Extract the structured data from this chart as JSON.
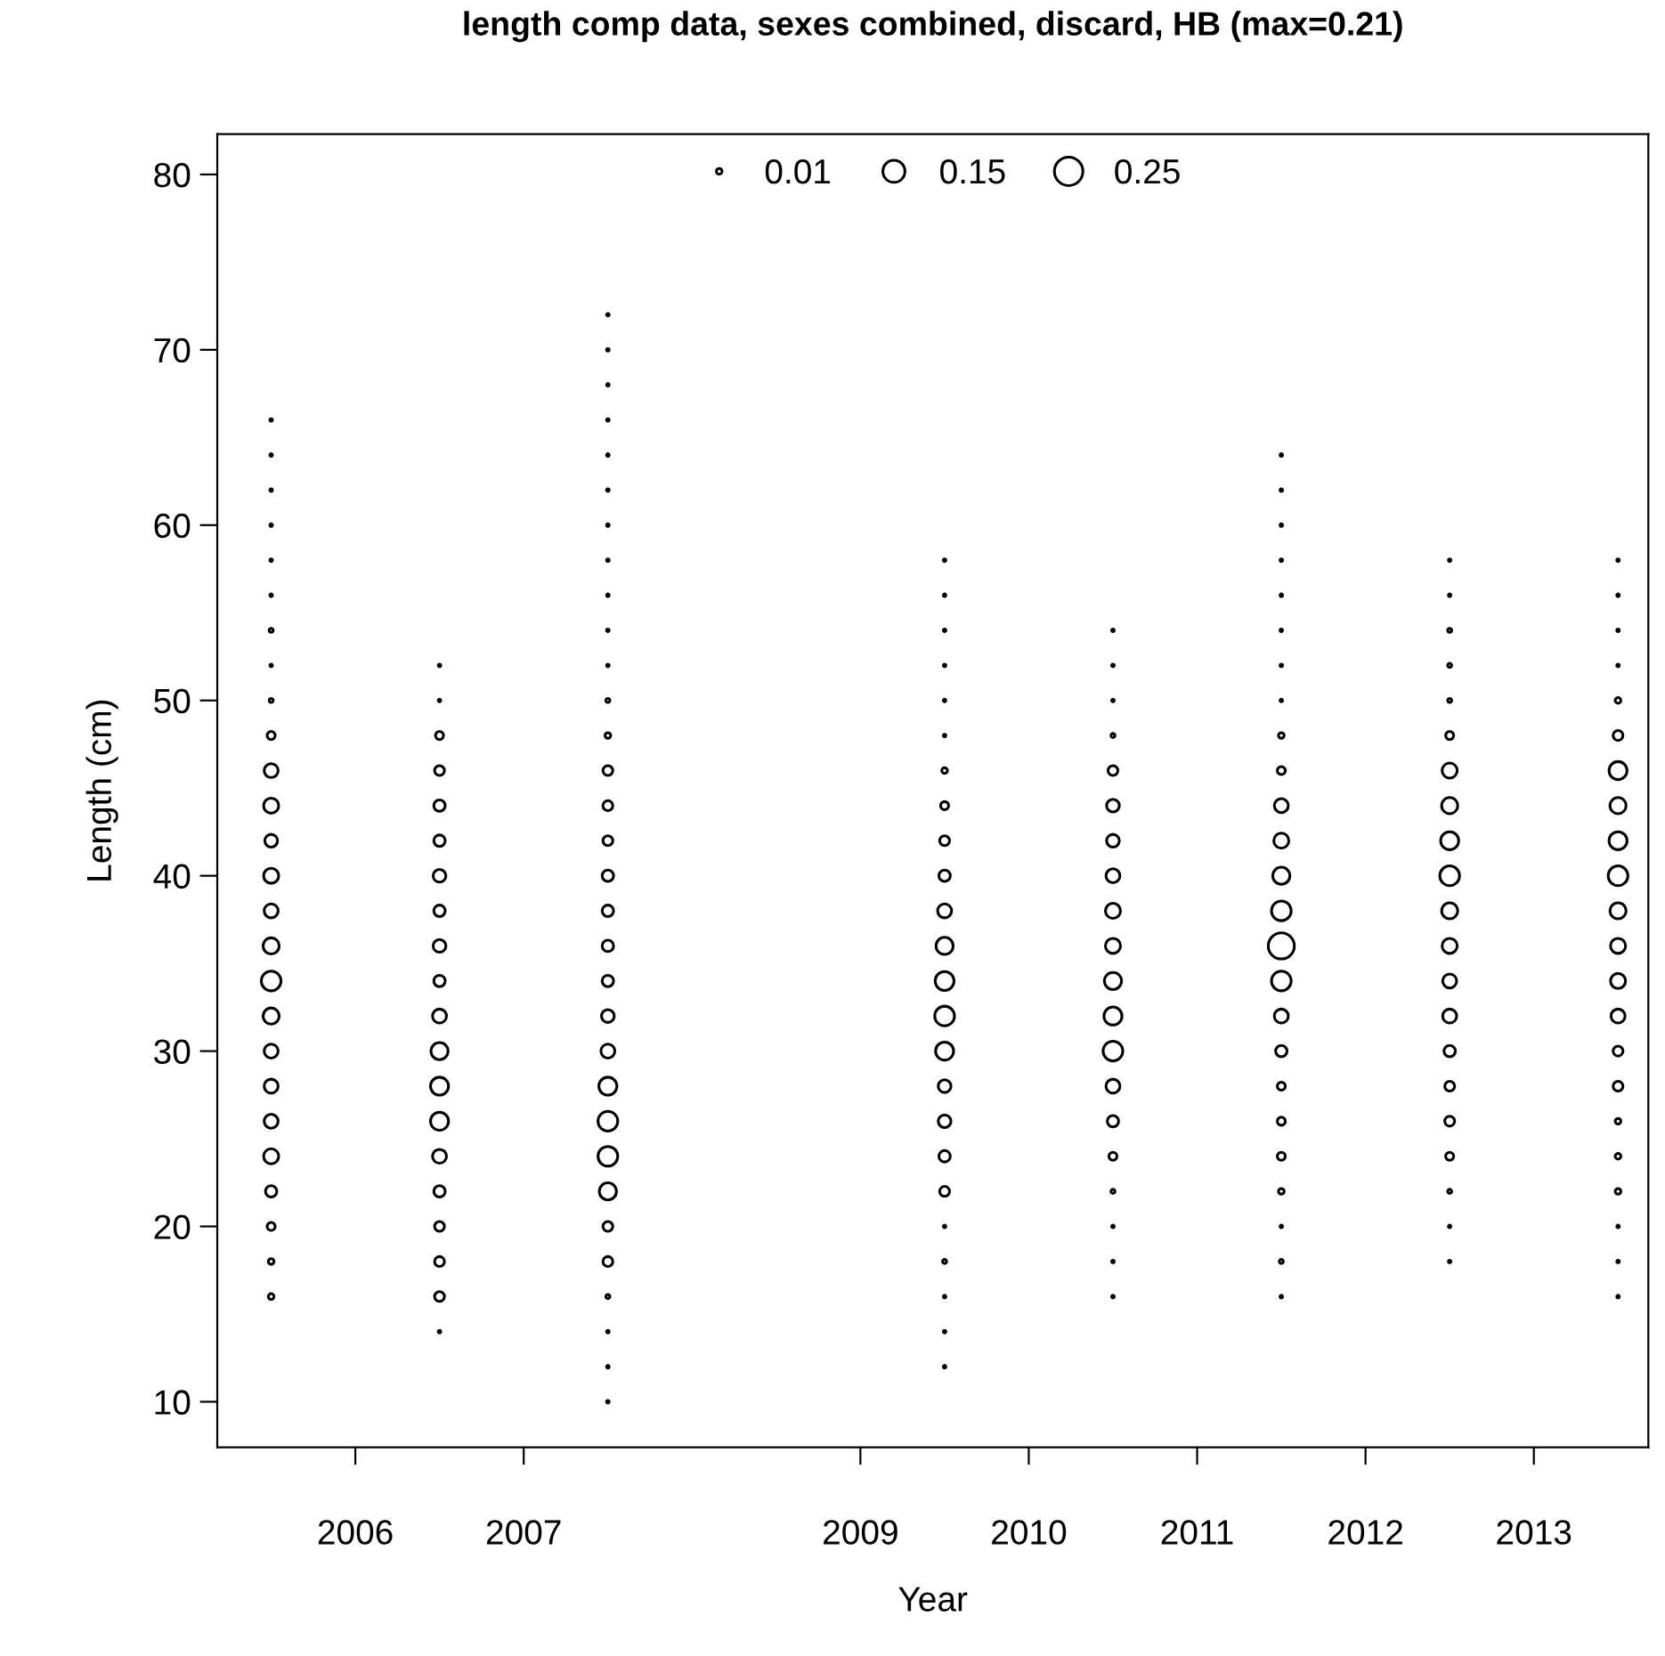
{
  "chart_data": {
    "type": "bubble",
    "title": "length comp data, sexes combined, discard, HB (max=0.21)",
    "xlabel": "Year",
    "ylabel": "Length (cm)",
    "xlim": [
      2005.18,
      2013.68
    ],
    "xticks": [
      2006,
      2007,
      2009,
      2010,
      2011,
      2012,
      2013
    ],
    "ylim": [
      7.4,
      82.3
    ],
    "yticks": [
      10,
      20,
      30,
      40,
      50,
      60,
      70,
      80
    ],
    "size_legend": [
      0.01,
      0.15,
      0.25
    ],
    "grid": false,
    "marker": "circle",
    "series": [
      {
        "color": "#000000",
        "x": [
          2005.5,
          2005.5,
          2005.5,
          2005.5,
          2005.5,
          2005.5,
          2005.5,
          2005.5,
          2005.5,
          2005.5,
          2005.5,
          2005.5,
          2005.5,
          2005.5,
          2005.5,
          2005.5,
          2005.5,
          2005.5,
          2005.5,
          2005.5,
          2005.5,
          2005.5,
          2005.5,
          2005.5,
          2005.5,
          2005.5
        ],
        "values": [
          16,
          18,
          20,
          22,
          24,
          26,
          28,
          30,
          32,
          34,
          36,
          38,
          40,
          42,
          44,
          46,
          48,
          50,
          52,
          54,
          56,
          58,
          60,
          62,
          64,
          66
        ],
        "sizes": [
          0.01,
          0.01,
          0.02,
          0.04,
          0.07,
          0.06,
          0.06,
          0.06,
          0.08,
          0.12,
          0.08,
          0.06,
          0.07,
          0.05,
          0.07,
          0.06,
          0.02,
          0.005,
          0.002,
          0.005,
          0.002,
          0.002,
          0.002,
          0.002,
          0.002,
          0.002
        ]
      },
      {
        "color": "#000000",
        "x": [
          2006.5,
          2006.5,
          2006.5,
          2006.5,
          2006.5,
          2006.5,
          2006.5,
          2006.5,
          2006.5,
          2006.5,
          2006.5,
          2006.5,
          2006.5,
          2006.5,
          2006.5,
          2006.5,
          2006.5,
          2006.5,
          2006.5,
          2006.5
        ],
        "values": [
          14,
          16,
          18,
          20,
          22,
          24,
          26,
          28,
          30,
          32,
          34,
          36,
          38,
          40,
          42,
          44,
          46,
          48,
          50,
          52
        ],
        "sizes": [
          0.002,
          0.03,
          0.03,
          0.03,
          0.04,
          0.06,
          0.1,
          0.1,
          0.09,
          0.06,
          0.04,
          0.05,
          0.04,
          0.05,
          0.04,
          0.04,
          0.03,
          0.02,
          0.002,
          0.002
        ]
      },
      {
        "color": "#000000",
        "x": [
          2007.5,
          2007.5,
          2007.5,
          2007.5,
          2007.5,
          2007.5,
          2007.5,
          2007.5,
          2007.5,
          2007.5,
          2007.5,
          2007.5,
          2007.5,
          2007.5,
          2007.5,
          2007.5,
          2007.5,
          2007.5,
          2007.5,
          2007.5,
          2007.5,
          2007.5,
          2007.5,
          2007.5,
          2007.5,
          2007.5,
          2007.5,
          2007.5,
          2007.5,
          2007.5,
          2007.5,
          2007.5
        ],
        "values": [
          10,
          12,
          14,
          16,
          18,
          20,
          22,
          24,
          26,
          28,
          30,
          32,
          34,
          36,
          38,
          40,
          42,
          44,
          46,
          48,
          50,
          52,
          54,
          56,
          58,
          60,
          62,
          64,
          66,
          68,
          70,
          72
        ],
        "sizes": [
          0.002,
          0.002,
          0.002,
          0.005,
          0.03,
          0.03,
          0.09,
          0.12,
          0.12,
          0.1,
          0.06,
          0.05,
          0.04,
          0.04,
          0.04,
          0.04,
          0.03,
          0.03,
          0.03,
          0.01,
          0.005,
          0.002,
          0.002,
          0.002,
          0.002,
          0.002,
          0.002,
          0.002,
          0.002,
          0.002,
          0.002,
          0.002
        ]
      },
      {
        "color": "#000000",
        "x": [
          2009.5,
          2009.5,
          2009.5,
          2009.5,
          2009.5,
          2009.5,
          2009.5,
          2009.5,
          2009.5,
          2009.5,
          2009.5,
          2009.5,
          2009.5,
          2009.5,
          2009.5,
          2009.5,
          2009.5,
          2009.5,
          2009.5,
          2009.5,
          2009.5,
          2009.5,
          2009.5,
          2009.5
        ],
        "values": [
          12,
          14,
          16,
          18,
          20,
          22,
          24,
          26,
          28,
          30,
          32,
          34,
          36,
          38,
          40,
          42,
          44,
          46,
          48,
          50,
          52,
          54,
          56,
          58
        ],
        "sizes": [
          0.002,
          0.002,
          0.002,
          0.005,
          0.002,
          0.03,
          0.04,
          0.05,
          0.05,
          0.1,
          0.12,
          0.11,
          0.09,
          0.06,
          0.04,
          0.03,
          0.02,
          0.01,
          0.002,
          0.002,
          0.002,
          0.002,
          0.002,
          0.002
        ]
      },
      {
        "color": "#000000",
        "x": [
          2010.5,
          2010.5,
          2010.5,
          2010.5,
          2010.5,
          2010.5,
          2010.5,
          2010.5,
          2010.5,
          2010.5,
          2010.5,
          2010.5,
          2010.5,
          2010.5,
          2010.5,
          2010.5,
          2010.5,
          2010.5,
          2010.5,
          2010.5
        ],
        "values": [
          16,
          18,
          20,
          22,
          24,
          26,
          28,
          30,
          32,
          34,
          36,
          38,
          40,
          42,
          44,
          46,
          48,
          50,
          52,
          54
        ],
        "sizes": [
          0.002,
          0.002,
          0.002,
          0.005,
          0.02,
          0.04,
          0.06,
          0.12,
          0.1,
          0.09,
          0.07,
          0.07,
          0.06,
          0.05,
          0.05,
          0.03,
          0.005,
          0.002,
          0.002,
          0.002
        ]
      },
      {
        "color": "#000000",
        "x": [
          2011.5,
          2011.5,
          2011.5,
          2011.5,
          2011.5,
          2011.5,
          2011.5,
          2011.5,
          2011.5,
          2011.5,
          2011.5,
          2011.5,
          2011.5,
          2011.5,
          2011.5,
          2011.5,
          2011.5,
          2011.5,
          2011.5,
          2011.5,
          2011.5,
          2011.5,
          2011.5,
          2011.5,
          2011.5
        ],
        "values": [
          16,
          18,
          20,
          22,
          24,
          26,
          28,
          30,
          32,
          34,
          36,
          38,
          40,
          42,
          44,
          46,
          48,
          50,
          52,
          54,
          56,
          58,
          60,
          62,
          64
        ],
        "sizes": [
          0.002,
          0.005,
          0.002,
          0.01,
          0.02,
          0.02,
          0.02,
          0.04,
          0.06,
          0.12,
          0.21,
          0.12,
          0.09,
          0.07,
          0.06,
          0.02,
          0.01,
          0.002,
          0.002,
          0.002,
          0.002,
          0.002,
          0.002,
          0.002,
          0.002
        ]
      },
      {
        "color": "#000000",
        "x": [
          2012.5,
          2012.5,
          2012.5,
          2012.5,
          2012.5,
          2012.5,
          2012.5,
          2012.5,
          2012.5,
          2012.5,
          2012.5,
          2012.5,
          2012.5,
          2012.5,
          2012.5,
          2012.5,
          2012.5,
          2012.5,
          2012.5,
          2012.5,
          2012.5
        ],
        "values": [
          18,
          20,
          22,
          24,
          26,
          28,
          30,
          32,
          34,
          36,
          38,
          40,
          42,
          44,
          46,
          48,
          50,
          52,
          54,
          56,
          58
        ],
        "sizes": [
          0.002,
          0.002,
          0.005,
          0.02,
          0.03,
          0.03,
          0.04,
          0.06,
          0.06,
          0.07,
          0.08,
          0.12,
          0.1,
          0.08,
          0.07,
          0.02,
          0.005,
          0.005,
          0.005,
          0.002,
          0.002
        ]
      },
      {
        "color": "#000000",
        "x": [
          2013.5,
          2013.5,
          2013.5,
          2013.5,
          2013.5,
          2013.5,
          2013.5,
          2013.5,
          2013.5,
          2013.5,
          2013.5,
          2013.5,
          2013.5,
          2013.5,
          2013.5,
          2013.5,
          2013.5,
          2013.5,
          2013.5,
          2013.5,
          2013.5,
          2013.5
        ],
        "values": [
          16,
          18,
          20,
          22,
          24,
          26,
          28,
          30,
          32,
          34,
          36,
          38,
          40,
          42,
          44,
          46,
          48,
          50,
          52,
          54,
          56,
          58
        ],
        "sizes": [
          0.002,
          0.002,
          0.002,
          0.01,
          0.01,
          0.01,
          0.03,
          0.03,
          0.06,
          0.07,
          0.07,
          0.08,
          0.12,
          0.1,
          0.08,
          0.1,
          0.03,
          0.01,
          0.002,
          0.002,
          0.002,
          0.002
        ]
      }
    ]
  }
}
